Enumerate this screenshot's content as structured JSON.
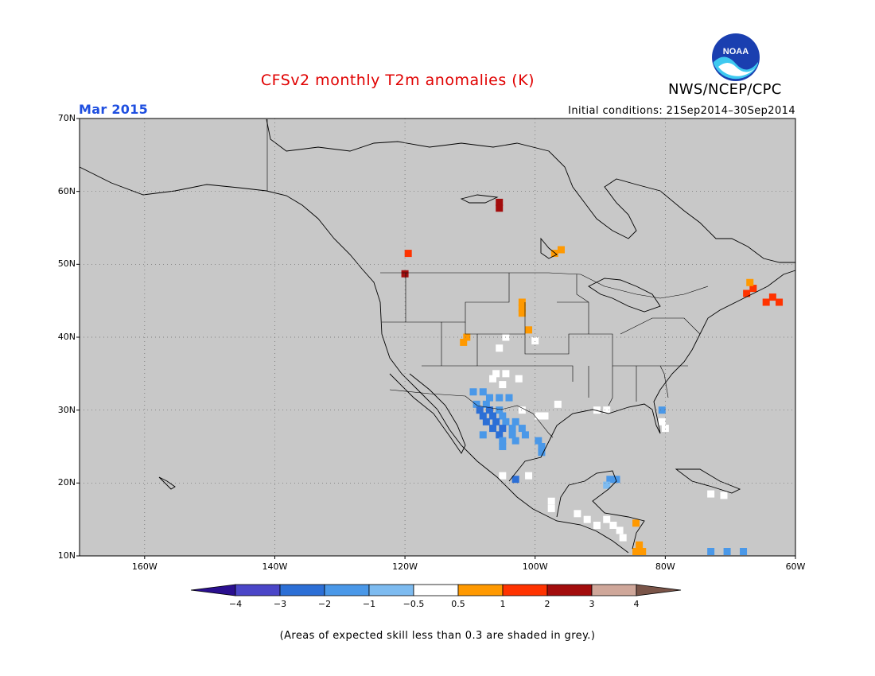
{
  "header": {
    "title": "CFSv2 monthly T2m anomalies (K)",
    "agency": "NWS/NCEP/CPC",
    "logo_text": "NOAA",
    "valid_month": "Mar 2015",
    "initial_conditions": "Initial conditions: 21Sep2014–30Sep2014"
  },
  "map": {
    "lat_labels": [
      "70N",
      "60N",
      "50N",
      "40N",
      "30N",
      "20N",
      "10N"
    ],
    "lon_labels": [
      "160W",
      "140W",
      "120W",
      "100W",
      "80W",
      "60W"
    ],
    "extent": {
      "lon": [
        -170,
        -60
      ],
      "lat": [
        10,
        70
      ]
    },
    "no_skill_color": "#c8c8c8",
    "land_color": "#ffffff"
  },
  "colorbar": {
    "tick_labels": [
      "−4",
      "−3",
      "−2",
      "−1",
      "−0.5",
      "0.5",
      "1",
      "2",
      "3",
      "4"
    ],
    "colors": [
      "#2a0f8f",
      "#4b46c8",
      "#2c6fd6",
      "#4a98e8",
      "#7dbbf0",
      "#ffffff",
      "#ff9900",
      "#ff3300",
      "#a30d0d",
      "#cfa79a",
      "#7a5448"
    ]
  },
  "footnote": "(Areas of expected skill less than 0.3 are shaded in grey.)",
  "anomaly_cells": [
    {
      "lat": 58.5,
      "lon": -105.5,
      "color": "#a30d0d"
    },
    {
      "lat": 57.7,
      "lon": -105.5,
      "color": "#a30d0d"
    },
    {
      "lat": 52.0,
      "lon": -96.0,
      "color": "#ff9900"
    },
    {
      "lat": 51.5,
      "lon": -97.0,
      "color": "#ff9900"
    },
    {
      "lat": 51.5,
      "lon": -119.5,
      "color": "#ff3300"
    },
    {
      "lat": 48.7,
      "lon": -120.0,
      "color": "#a30d0d"
    },
    {
      "lat": 46.7,
      "lon": -66.5,
      "color": "#ff3300"
    },
    {
      "lat": 46.0,
      "lon": -67.5,
      "color": "#ff3300"
    },
    {
      "lat": 45.5,
      "lon": -63.5,
      "color": "#ff3300"
    },
    {
      "lat": 44.8,
      "lon": -64.5,
      "color": "#ff3300"
    },
    {
      "lat": 44.8,
      "lon": -62.5,
      "color": "#ff3300"
    },
    {
      "lat": 47.5,
      "lon": -67.0,
      "color": "#ff9900"
    },
    {
      "lat": 44.8,
      "lon": -102.0,
      "color": "#ff9900"
    },
    {
      "lat": 44.0,
      "lon": -102.0,
      "color": "#ff9900"
    },
    {
      "lat": 43.3,
      "lon": -102.0,
      "color": "#ff9900"
    },
    {
      "lat": 41.0,
      "lon": -101.0,
      "color": "#ff9900"
    },
    {
      "lat": 40.0,
      "lon": -110.5,
      "color": "#ff9900"
    },
    {
      "lat": 39.3,
      "lon": -111.0,
      "color": "#ff9900"
    },
    {
      "lat": 40.0,
      "lon": -104.5,
      "color": "#ffffff"
    },
    {
      "lat": 39.5,
      "lon": -100.0,
      "color": "#ffffff"
    },
    {
      "lat": 38.5,
      "lon": -105.5,
      "color": "#ffffff"
    },
    {
      "lat": 35.0,
      "lon": -106.0,
      "color": "#ffffff"
    },
    {
      "lat": 35.0,
      "lon": -104.5,
      "color": "#ffffff"
    },
    {
      "lat": 34.3,
      "lon": -106.5,
      "color": "#ffffff"
    },
    {
      "lat": 34.3,
      "lon": -102.5,
      "color": "#ffffff"
    },
    {
      "lat": 33.5,
      "lon": -105.0,
      "color": "#ffffff"
    },
    {
      "lat": 32.5,
      "lon": -109.5,
      "color": "#4a98e8"
    },
    {
      "lat": 32.5,
      "lon": -108.0,
      "color": "#4a98e8"
    },
    {
      "lat": 31.7,
      "lon": -107.0,
      "color": "#4a98e8"
    },
    {
      "lat": 31.7,
      "lon": -105.5,
      "color": "#4a98e8"
    },
    {
      "lat": 31.7,
      "lon": -104.0,
      "color": "#4a98e8"
    },
    {
      "lat": 30.8,
      "lon": -109.0,
      "color": "#4a98e8"
    },
    {
      "lat": 30.8,
      "lon": -107.5,
      "color": "#4a98e8"
    },
    {
      "lat": 30.0,
      "lon": -108.5,
      "color": "#2c6fd6"
    },
    {
      "lat": 30.0,
      "lon": -107.0,
      "color": "#2c6fd6"
    },
    {
      "lat": 30.0,
      "lon": -105.5,
      "color": "#4a98e8"
    },
    {
      "lat": 29.2,
      "lon": -108.0,
      "color": "#2c6fd6"
    },
    {
      "lat": 29.2,
      "lon": -106.5,
      "color": "#2c6fd6"
    },
    {
      "lat": 29.2,
      "lon": -105.0,
      "color": "#4a98e8"
    },
    {
      "lat": 28.4,
      "lon": -107.5,
      "color": "#2c6fd6"
    },
    {
      "lat": 28.4,
      "lon": -106.0,
      "color": "#2c6fd6"
    },
    {
      "lat": 28.4,
      "lon": -104.5,
      "color": "#4a98e8"
    },
    {
      "lat": 28.4,
      "lon": -103.0,
      "color": "#4a98e8"
    },
    {
      "lat": 27.5,
      "lon": -106.5,
      "color": "#2c6fd6"
    },
    {
      "lat": 27.5,
      "lon": -105.0,
      "color": "#2c6fd6"
    },
    {
      "lat": 27.5,
      "lon": -103.5,
      "color": "#4a98e8"
    },
    {
      "lat": 27.5,
      "lon": -102.0,
      "color": "#4a98e8"
    },
    {
      "lat": 26.6,
      "lon": -108.0,
      "color": "#4a98e8"
    },
    {
      "lat": 26.6,
      "lon": -105.5,
      "color": "#2c6fd6"
    },
    {
      "lat": 26.6,
      "lon": -103.5,
      "color": "#4a98e8"
    },
    {
      "lat": 26.6,
      "lon": -101.5,
      "color": "#4a98e8"
    },
    {
      "lat": 25.8,
      "lon": -105.0,
      "color": "#4a98e8"
    },
    {
      "lat": 25.8,
      "lon": -103.0,
      "color": "#4a98e8"
    },
    {
      "lat": 25.0,
      "lon": -105.0,
      "color": "#4a98e8"
    },
    {
      "lat": 25.0,
      "lon": -99.0,
      "color": "#4a98e8"
    },
    {
      "lat": 25.8,
      "lon": -99.5,
      "color": "#4a98e8"
    },
    {
      "lat": 24.2,
      "lon": -99.0,
      "color": "#4a98e8"
    },
    {
      "lat": 30.0,
      "lon": -102.0,
      "color": "#ffffff"
    },
    {
      "lat": 29.2,
      "lon": -99.5,
      "color": "#ffffff"
    },
    {
      "lat": 29.2,
      "lon": -98.5,
      "color": "#ffffff"
    },
    {
      "lat": 30.8,
      "lon": -96.5,
      "color": "#ffffff"
    },
    {
      "lat": 30.0,
      "lon": -90.5,
      "color": "#ffffff"
    },
    {
      "lat": 30.0,
      "lon": -89.0,
      "color": "#ffffff"
    },
    {
      "lat": 30.0,
      "lon": -80.5,
      "color": "#4a98e8"
    },
    {
      "lat": 28.4,
      "lon": -80.5,
      "color": "#ffffff"
    },
    {
      "lat": 27.5,
      "lon": -80.0,
      "color": "#ffffff"
    },
    {
      "lat": 21.0,
      "lon": -105.0,
      "color": "#ffffff"
    },
    {
      "lat": 20.5,
      "lon": -103.0,
      "color": "#2c6fd6"
    },
    {
      "lat": 21.0,
      "lon": -101.0,
      "color": "#ffffff"
    },
    {
      "lat": 17.5,
      "lon": -97.5,
      "color": "#ffffff"
    },
    {
      "lat": 16.5,
      "lon": -97.5,
      "color": "#ffffff"
    },
    {
      "lat": 15.8,
      "lon": -93.5,
      "color": "#ffffff"
    },
    {
      "lat": 15.0,
      "lon": -92.0,
      "color": "#ffffff"
    },
    {
      "lat": 14.2,
      "lon": -90.5,
      "color": "#ffffff"
    },
    {
      "lat": 15.0,
      "lon": -89.0,
      "color": "#ffffff"
    },
    {
      "lat": 14.2,
      "lon": -88.0,
      "color": "#ffffff"
    },
    {
      "lat": 13.5,
      "lon": -87.0,
      "color": "#ffffff"
    },
    {
      "lat": 12.5,
      "lon": -86.5,
      "color": "#ffffff"
    },
    {
      "lat": 20.5,
      "lon": -88.5,
      "color": "#4a98e8"
    },
    {
      "lat": 20.5,
      "lon": -87.5,
      "color": "#4a98e8"
    },
    {
      "lat": 19.7,
      "lon": -89.0,
      "color": "#7dbbf0"
    },
    {
      "lat": 14.5,
      "lon": -84.5,
      "color": "#ff9900"
    },
    {
      "lat": 11.5,
      "lon": -84.0,
      "color": "#ff9900"
    },
    {
      "lat": 10.6,
      "lon": -84.5,
      "color": "#ff9900"
    },
    {
      "lat": 10.6,
      "lon": -83.5,
      "color": "#ff9900"
    },
    {
      "lat": 18.5,
      "lon": -73.0,
      "color": "#ffffff"
    },
    {
      "lat": 18.3,
      "lon": -71.0,
      "color": "#ffffff"
    },
    {
      "lat": 10.6,
      "lon": -73.0,
      "color": "#4a98e8"
    },
    {
      "lat": 10.6,
      "lon": -70.5,
      "color": "#4a98e8"
    },
    {
      "lat": 10.6,
      "lon": -68.0,
      "color": "#4a98e8"
    }
  ]
}
